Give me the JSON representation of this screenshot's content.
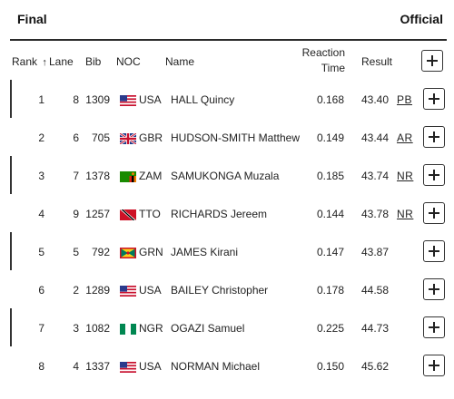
{
  "header": {
    "title": "Final",
    "status": "Official"
  },
  "columns": {
    "rank": "Rank",
    "sort_arrow": "↑",
    "lane": "Lane",
    "bib": "Bib",
    "noc": "NOC",
    "name": "Name",
    "reaction_line1": "Reaction",
    "reaction_line2": "Time",
    "result": "Result",
    "add_icon": "plus-icon"
  },
  "rows": [
    {
      "rank": "1",
      "lane": "8",
      "bib": "1309",
      "noc": "USA",
      "flag": "usa-flag-icon",
      "name": "HALL Quincy",
      "reaction": "0.168",
      "result": "43.40",
      "record": "PB"
    },
    {
      "rank": "2",
      "lane": "6",
      "bib": "705",
      "noc": "GBR",
      "flag": "gbr-flag-icon",
      "name": "HUDSON-SMITH Matthew",
      "reaction": "0.149",
      "result": "43.44",
      "record": "AR"
    },
    {
      "rank": "3",
      "lane": "7",
      "bib": "1378",
      "noc": "ZAM",
      "flag": "zam-flag-icon",
      "name": "SAMUKONGA Muzala",
      "reaction": "0.185",
      "result": "43.74",
      "record": "NR"
    },
    {
      "rank": "4",
      "lane": "9",
      "bib": "1257",
      "noc": "TTO",
      "flag": "tto-flag-icon",
      "name": "RICHARDS Jereem",
      "reaction": "0.144",
      "result": "43.78",
      "record": "NR"
    },
    {
      "rank": "5",
      "lane": "5",
      "bib": "792",
      "noc": "GRN",
      "flag": "grn-flag-icon",
      "name": "JAMES Kirani",
      "reaction": "0.147",
      "result": "43.87",
      "record": ""
    },
    {
      "rank": "6",
      "lane": "2",
      "bib": "1289",
      "noc": "USA",
      "flag": "usa-flag-icon",
      "name": "BAILEY Christopher",
      "reaction": "0.178",
      "result": "44.58",
      "record": ""
    },
    {
      "rank": "7",
      "lane": "3",
      "bib": "1082",
      "noc": "NGR",
      "flag": "ngr-flag-icon",
      "name": "OGAZI Samuel",
      "reaction": "0.225",
      "result": "44.73",
      "record": ""
    },
    {
      "rank": "8",
      "lane": "4",
      "bib": "1337",
      "noc": "USA",
      "flag": "usa-flag-icon",
      "name": "NORMAN Michael",
      "reaction": "0.150",
      "result": "45.62",
      "record": ""
    }
  ]
}
